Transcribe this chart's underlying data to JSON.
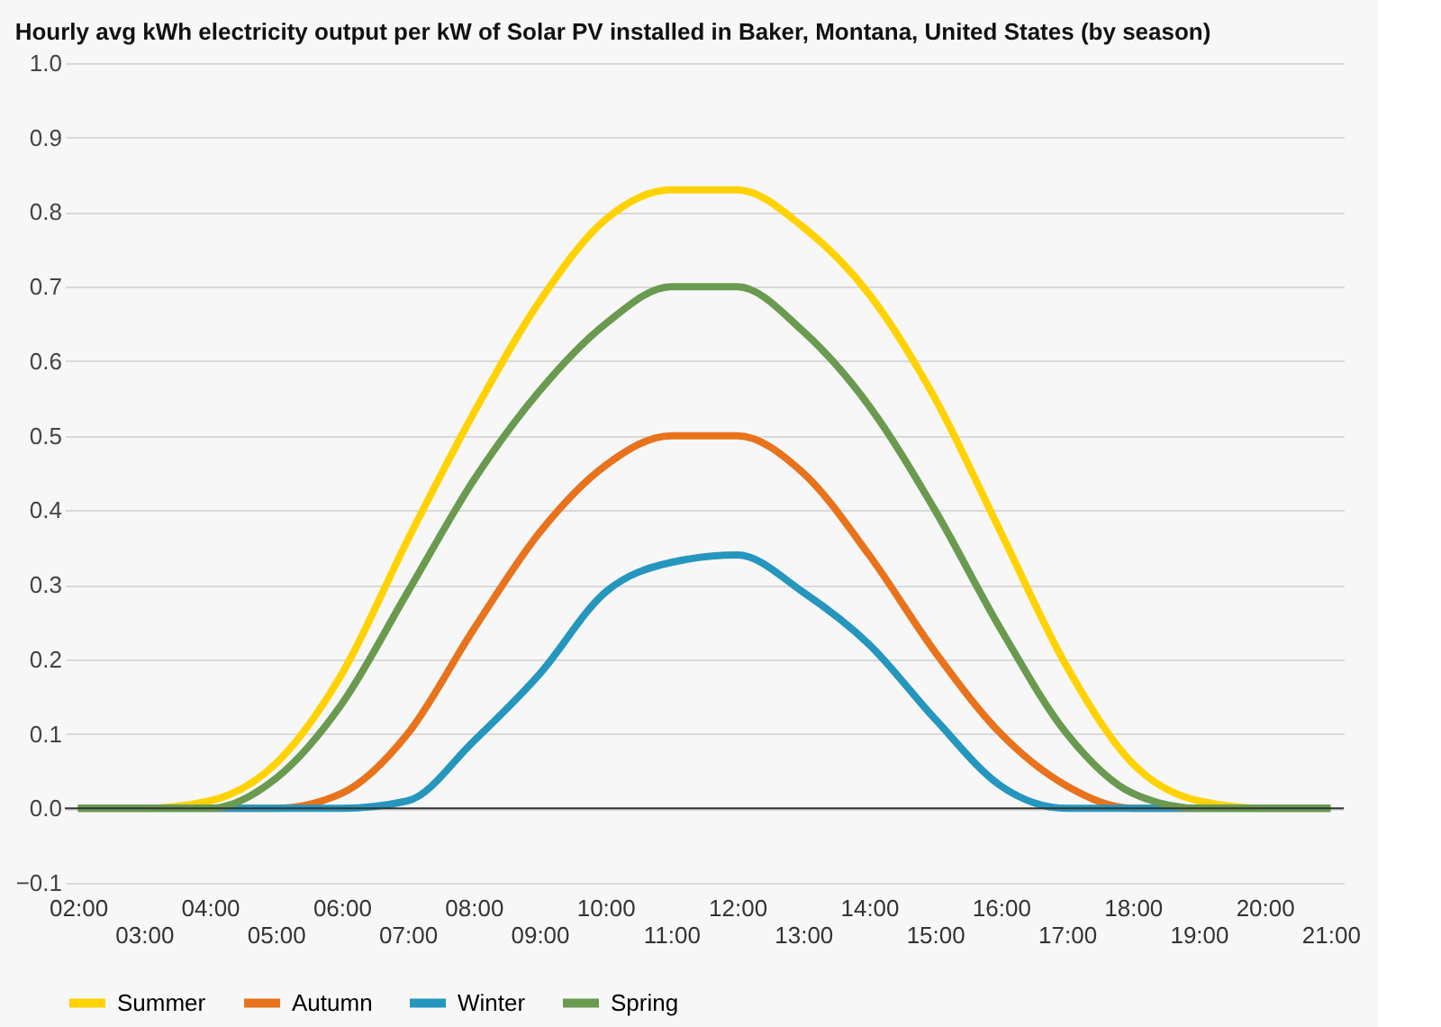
{
  "chart_data": {
    "type": "line",
    "title": "Hourly avg kWh electricity output per kW of Solar PV installed in Baker, Montana, United States (by season)",
    "categories": [
      "02:00",
      "03:00",
      "04:00",
      "05:00",
      "06:00",
      "07:00",
      "08:00",
      "09:00",
      "10:00",
      "11:00",
      "12:00",
      "13:00",
      "14:00",
      "15:00",
      "16:00",
      "17:00",
      "18:00",
      "19:00",
      "20:00",
      "21:00"
    ],
    "series": [
      {
        "name": "Summer",
        "color": "#ffd200",
        "values": [
          0,
          0,
          0.01,
          0.06,
          0.18,
          0.36,
          0.53,
          0.68,
          0.79,
          0.83,
          0.83,
          0.78,
          0.69,
          0.55,
          0.37,
          0.19,
          0.06,
          0.01,
          0,
          0
        ]
      },
      {
        "name": "Autumn",
        "color": "#e8731c",
        "values": [
          null,
          null,
          0,
          0,
          0.02,
          0.1,
          0.24,
          0.37,
          0.46,
          0.5,
          0.5,
          0.45,
          0.34,
          0.21,
          0.1,
          0.03,
          0,
          0,
          null,
          null
        ]
      },
      {
        "name": "Winter",
        "color": "#2596be",
        "values": [
          0,
          0,
          0,
          0,
          0,
          0.01,
          0.09,
          0.18,
          0.29,
          0.33,
          0.34,
          0.29,
          0.22,
          0.12,
          0.03,
          0,
          0,
          0,
          0,
          0
        ]
      },
      {
        "name": "Spring",
        "color": "#6a9a4f",
        "values": [
          0,
          0,
          0,
          0.04,
          0.14,
          0.29,
          0.44,
          0.56,
          0.65,
          0.7,
          0.7,
          0.64,
          0.54,
          0.4,
          0.24,
          0.1,
          0.02,
          0,
          0,
          0
        ]
      }
    ],
    "ylim": [
      -0.1,
      1.0
    ],
    "yticks": [
      -0.1,
      {
        "value": 0,
        "label": "0.0"
      },
      0.1,
      0.2,
      0.3,
      0.4,
      0.5,
      0.6,
      0.7,
      0.8,
      0.9,
      {
        "value": 1.0,
        "label": "1.0"
      }
    ],
    "ref_lines": [
      {
        "axis": "y",
        "value": 0,
        "color": "#333333"
      }
    ],
    "grid": "y",
    "legend": "bottom",
    "line_style": "solid",
    "marker": "none"
  }
}
